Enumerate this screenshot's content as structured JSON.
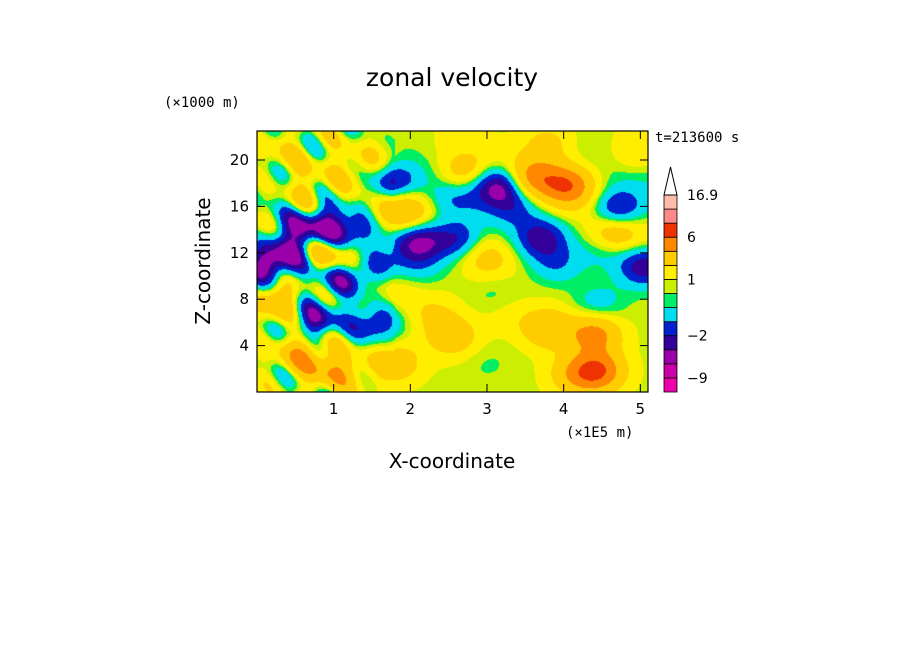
{
  "chart_data": {
    "type": "heatmap",
    "title": "zonal velocity",
    "xlabel": "X-coordinate",
    "ylabel": "Z-coordinate",
    "x_unit": "(×1E5 m)",
    "y_unit": "(×1000 m)",
    "time_label": "t=213600 s",
    "xlim": [
      0,
      5.1
    ],
    "ylim": [
      0,
      22.5
    ],
    "x_ticks": [
      "1",
      "2",
      "3",
      "4",
      "5"
    ],
    "x_tick_values": [
      1,
      2,
      3,
      4,
      5
    ],
    "y_ticks": [
      "4",
      "8",
      "12",
      "16",
      "20"
    ],
    "y_tick_values": [
      4,
      8,
      12,
      16,
      20
    ],
    "colorbar": {
      "labels": [
        "16.9",
        "6",
        "1",
        "-2",
        "-9"
      ],
      "label_values": [
        16.9,
        6,
        1,
        -2,
        -9
      ],
      "levels": [
        -12,
        -9,
        -6,
        -3,
        -2,
        -1,
        0,
        0.5,
        1,
        2,
        4,
        6,
        8,
        12,
        16.9
      ],
      "colors": [
        "#ee00aa",
        "#cc00aa",
        "#9900aa",
        "#330099",
        "#0022cc",
        "#00ddee",
        "#00ee66",
        "#ccee00",
        "#ffee00",
        "#ffcc00",
        "#ff8800",
        "#ee3300",
        "#ff8888",
        "#ffbbaa"
      ]
    },
    "grid": false,
    "field_description_values": {
      "blobs": [
        {
          "x": 0.05,
          "z": 10.5,
          "u": -3.5
        },
        {
          "x": 0.35,
          "z": 11.8,
          "u": -3.5
        },
        {
          "x": 0.55,
          "z": 13.8,
          "u": -3.0
        },
        {
          "x": 0.75,
          "z": 6.0,
          "u": -3.5
        },
        {
          "x": 0.95,
          "z": 14.5,
          "u": -2.5
        },
        {
          "x": 1.05,
          "z": 9.8,
          "u": -3.0
        },
        {
          "x": 1.25,
          "z": 13.5,
          "u": -3.0
        },
        {
          "x": 1.45,
          "z": 11.0,
          "u": -3.0
        },
        {
          "x": 1.55,
          "z": 6.0,
          "u": -3.0
        },
        {
          "x": 1.75,
          "z": 18.0,
          "u": -3.5
        },
        {
          "x": 2.1,
          "z": 13.0,
          "u": -4.0
        },
        {
          "x": 2.6,
          "z": 13.2,
          "u": -3.0
        },
        {
          "x": 2.55,
          "z": 16.5,
          "u": -1.5
        },
        {
          "x": 2.1,
          "z": 11.0,
          "u": -1.2
        },
        {
          "x": 3.15,
          "z": 17.8,
          "u": -4.0
        },
        {
          "x": 3.35,
          "z": 16.0,
          "u": -1.5
        },
        {
          "x": 3.7,
          "z": 13.2,
          "u": -3.0
        },
        {
          "x": 3.9,
          "z": 11.0,
          "u": -1.6
        },
        {
          "x": 4.7,
          "z": 15.8,
          "u": -3.5
        },
        {
          "x": 5.05,
          "z": 10.8,
          "u": -3.5
        },
        {
          "x": 4.55,
          "z": 12.5,
          "u": -1.5
        },
        {
          "x": 4.45,
          "z": 7.5,
          "u": -1.4
        },
        {
          "x": 4.05,
          "z": 17.8,
          "u": 4.5
        },
        {
          "x": 3.6,
          "z": 18.5,
          "u": 3.5
        },
        {
          "x": 4.65,
          "z": 13.5,
          "u": 3.0
        },
        {
          "x": 3.8,
          "z": 5.5,
          "u": 3.0
        },
        {
          "x": 4.4,
          "z": 5.0,
          "u": 4.0
        },
        {
          "x": 2.55,
          "z": 4.8,
          "u": 2.5
        },
        {
          "x": 1.9,
          "z": 15.5,
          "u": 3.0
        },
        {
          "x": 2.7,
          "z": 19.0,
          "u": 2.5
        },
        {
          "x": 3.0,
          "z": 11.5,
          "u": 1.8
        },
        {
          "x": 1.3,
          "z": 11.8,
          "u": 3.0
        },
        {
          "x": 0.9,
          "z": 12.0,
          "u": 2.5
        },
        {
          "x": 0.25,
          "z": 8.0,
          "u": 3.0
        },
        {
          "x": 0.6,
          "z": 3.5,
          "u": 3.0
        },
        {
          "x": 1.0,
          "z": 1.8,
          "u": 3.0
        },
        {
          "x": 1.8,
          "z": 2.5,
          "u": 2.5
        },
        {
          "x": 4.15,
          "z": 1.5,
          "u": 2.5
        },
        {
          "x": 4.45,
          "z": 1.8,
          "u": 5.0
        },
        {
          "x": 3.1,
          "z": 8.5,
          "u": -0.5
        },
        {
          "x": 3.3,
          "z": 6.5,
          "u": 0.6
        },
        {
          "x": 1.8,
          "z": 8.5,
          "u": 1.0
        },
        {
          "x": 2.3,
          "z": 6.8,
          "u": 1.3
        },
        {
          "x": 0.6,
          "z": 17.0,
          "u": 1.8
        },
        {
          "x": 1.5,
          "z": 20.0,
          "u": 1.5
        },
        {
          "x": 4.9,
          "z": 20.5,
          "u": 1.2
        },
        {
          "x": 3.8,
          "z": 21.5,
          "u": 1.8
        },
        {
          "x": 2.3,
          "z": 21.0,
          "u": 0.2
        },
        {
          "x": 0.25,
          "z": 20.0,
          "u": 0.8
        },
        {
          "x": 3.0,
          "z": 2.5,
          "u": -0.4
        }
      ],
      "base_value": 0.8
    }
  }
}
